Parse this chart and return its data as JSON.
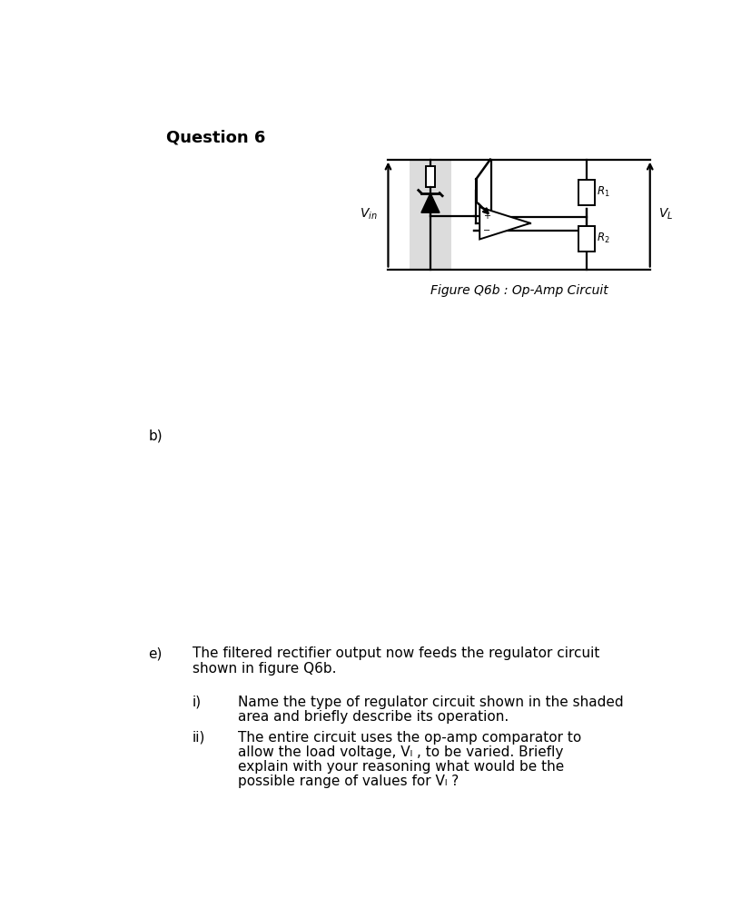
{
  "title": "Question 6",
  "fig_caption": "Figure Q6b : Op-Amp Circuit",
  "label_vin": "V$_{in}$",
  "label_vl": "V$_{L}$",
  "label_r1": "R$_1$",
  "label_r2": "R$_2$",
  "bg_color": "#ffffff",
  "lc": "#000000",
  "shaded_color": "#c0c0c0",
  "shaded_alpha": 0.55,
  "question_label": "b)",
  "sub_e_label": "e)",
  "sub_i_label": "i)",
  "sub_ii_label": "ii)",
  "text_e1": "The filtered rectifier output now feeds the regulator circuit",
  "text_e2": "shown in figure Q6b.",
  "text_i1": "Name the type of regulator circuit shown in the shaded",
  "text_i2": "area and briefly describe its operation.",
  "text_ii1": "The entire circuit uses the op-amp comparator to",
  "text_ii2": "allow the load voltage, Vₗ , to be varied. Briefly",
  "text_ii3": "explain with your reasoning what would be the",
  "text_ii4": "possible range of values for Vₗ ?"
}
